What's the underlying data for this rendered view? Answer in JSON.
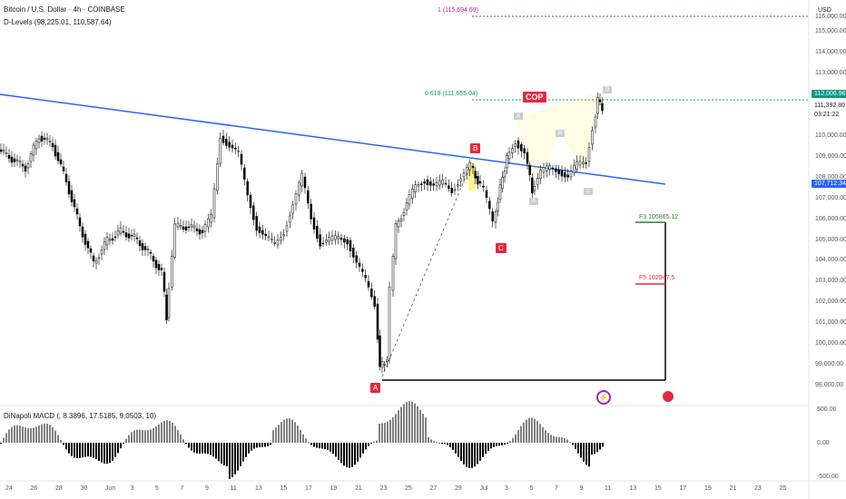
{
  "header": {
    "symbol": "Bitcoin / U.S. Dollar · 4h · COINBASE",
    "indicator": "D-Levels (98,225.01, 110,587.64)",
    "macd": "DiNapoli MACD (, 8.3896, 17.5185, 9.0503, 10)",
    "currency": "USD"
  },
  "price_axis": {
    "labels": [
      "116,000.00",
      "115,000.00",
      "114,000.00",
      "113,000.00",
      "110,000.00",
      "109,000.00",
      "108,000.00",
      "107,000.00",
      "106,000.00",
      "105,000.00",
      "104,000.00",
      "103,000.00",
      "102,000.00",
      "101,000.00",
      "100,000.00",
      "99,000.00",
      "98,000.00"
    ],
    "current_price": "111,392.80",
    "countdown": "03:21:22",
    "level_112": "112,006.96",
    "trend_price": "107,712.34"
  },
  "macd_axis": {
    "labels": [
      "500.00",
      "0.00",
      "-500.00"
    ]
  },
  "time_axis": {
    "labels": [
      "24",
      "26",
      "28",
      "30",
      "Jun",
      "3",
      "5",
      "7",
      "9",
      "11",
      "13",
      "15",
      "17",
      "19",
      "21",
      "23",
      "25",
      "27",
      "29",
      "Jul",
      "3",
      "5",
      "7",
      "9",
      "11",
      "13",
      "15",
      "17",
      "19",
      "21",
      "23",
      "25"
    ]
  },
  "annotations": {
    "fib_1": "1 (115,694.69)",
    "fib_0618": "0.618 (111,655.04)",
    "cop": "COP",
    "point_a": "A",
    "point_b": "B",
    "point_c": "C",
    "f3": "F3 105865.12",
    "f5": "F5 102947.5",
    "pattern_labels": [
      "X",
      "A",
      "B",
      "C",
      "D"
    ]
  },
  "colors": {
    "up": "#000000",
    "up_fill": "#ffffff",
    "down": "#000000",
    "trendline": "#2962ff",
    "red_label": "#e5283f",
    "green": "#2e7d32",
    "purple": "#9c27b0",
    "fib_green": "#089981"
  }
}
